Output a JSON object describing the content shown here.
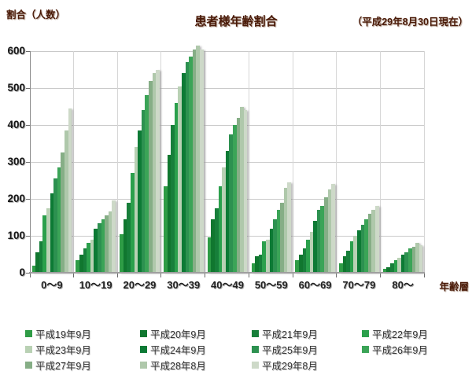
{
  "header": {
    "ylabel_top": "割合（人数）",
    "title": "患者様年齢割合",
    "date_note": "（平成29年8月30日現在）"
  },
  "chart_data": {
    "type": "bar",
    "title": "患者様年齢割合",
    "subtitle": "（平成29年8月30日現在）",
    "ylabel": "割合（人数）",
    "xlabel": "年齢層",
    "ylim": [
      0,
      600
    ],
    "y_ticks": [
      0,
      100,
      200,
      300,
      400,
      500,
      600
    ],
    "grid": true,
    "legend_position": "bottom",
    "categories": [
      "0〜9",
      "10〜19",
      "20〜29",
      "30〜39",
      "40〜49",
      "50〜59",
      "60〜69",
      "70〜79",
      "80〜"
    ],
    "series": [
      {
        "name": "平成19年9月",
        "color": "#2f9c46",
        "values": [
          20,
          35,
          105,
          235,
          95,
          25,
          35,
          25,
          10
        ]
      },
      {
        "name": "平成20年9月",
        "color": "#10772f",
        "values": [
          55,
          50,
          145,
          320,
          145,
          45,
          50,
          45,
          15
        ]
      },
      {
        "name": "平成21年9月",
        "color": "#177f3a",
        "values": [
          85,
          65,
          190,
          400,
          175,
          50,
          65,
          60,
          25
        ]
      },
      {
        "name": "平成22年9月",
        "color": "#2ba04c",
        "values": [
          155,
          80,
          270,
          460,
          235,
          85,
          90,
          85,
          35
        ]
      },
      {
        "name": "平成23年9月",
        "color": "#b9d1b4",
        "values": [
          175,
          90,
          340,
          505,
          285,
          90,
          110,
          100,
          40
        ]
      },
      {
        "name": "平成24年9月",
        "color": "#0d7a35",
        "values": [
          215,
          120,
          385,
          540,
          330,
          120,
          140,
          115,
          48
        ]
      },
      {
        "name": "平成25年9月",
        "color": "#2d9150",
        "values": [
          255,
          135,
          440,
          570,
          375,
          145,
          170,
          130,
          55
        ]
      },
      {
        "name": "平成26年9月",
        "color": "#3ba457",
        "values": [
          285,
          145,
          480,
          585,
          400,
          170,
          180,
          145,
          65
        ]
      },
      {
        "name": "平成27年9月",
        "color": "#86ae86",
        "values": [
          325,
          155,
          520,
          605,
          420,
          190,
          205,
          160,
          70
        ]
      },
      {
        "name": "平成28年8月",
        "color": "#afc8ab",
        "values": [
          385,
          165,
          540,
          615,
          450,
          230,
          225,
          170,
          80
        ]
      },
      {
        "name": "平成29年8月",
        "color": "#cdd9c8",
        "values": [
          445,
          195,
          550,
          605,
          440,
          245,
          240,
          180,
          75
        ]
      }
    ]
  }
}
